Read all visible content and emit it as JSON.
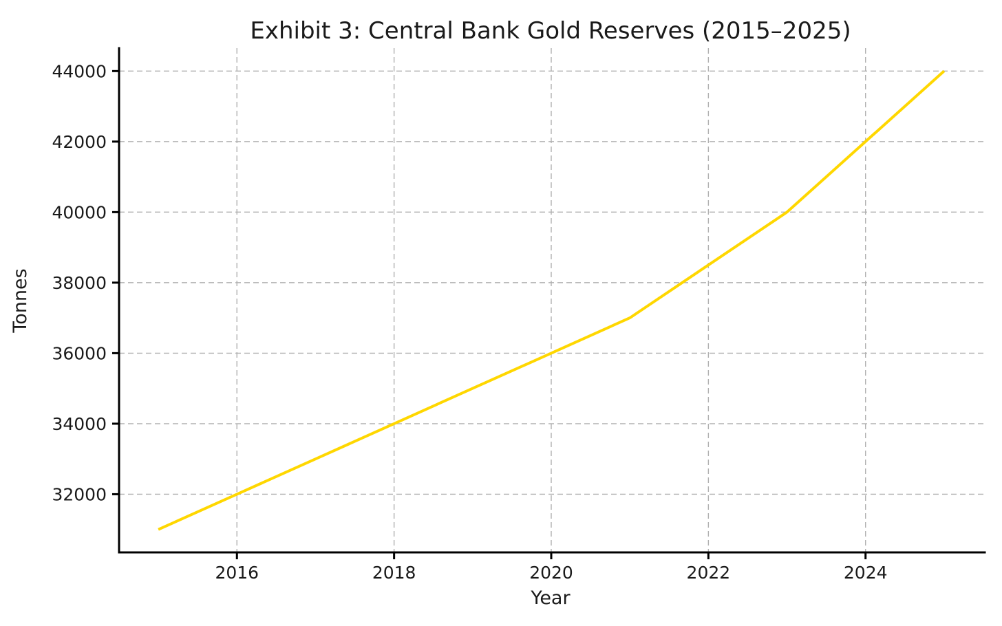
{
  "chart_data": {
    "type": "line",
    "title": "Exhibit 3: Central Bank Gold Reserves (2015–2025)",
    "xlabel": "Year",
    "ylabel": "Tonnes",
    "x": [
      2015,
      2016,
      2017,
      2018,
      2019,
      2020,
      2021,
      2022,
      2023,
      2024,
      2025
    ],
    "series": [
      {
        "color": "#FFD700",
        "line_width": 4,
        "values": [
          31000,
          32000,
          33000,
          34000,
          35000,
          36000,
          37000,
          38500,
          40000,
          42000,
          44000
        ]
      }
    ],
    "xticks": [
      2016,
      2018,
      2020,
      2022,
      2024
    ],
    "yticks": [
      32000,
      34000,
      36000,
      38000,
      40000,
      42000,
      44000
    ],
    "xlim": [
      2014.5,
      2025.5
    ],
    "ylim": [
      30350,
      44650
    ],
    "grid": true,
    "grid_style": "dashed",
    "grid_color": "#b0b0b0",
    "axis_color": "#000000",
    "text_color": "#1a1a1a",
    "background": "#ffffff",
    "legend": null
  }
}
